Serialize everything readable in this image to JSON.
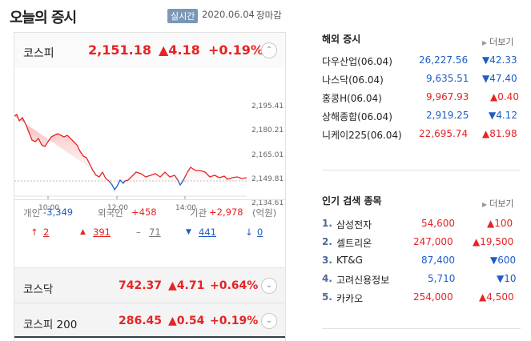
{
  "header": {
    "title": "오늘의 증시",
    "realtime": "실시간",
    "date": "2020.06.04",
    "status": "장마감"
  },
  "kospi": {
    "name": "코스피",
    "value": "2,151.18",
    "change": "▲4.18",
    "percent": "+0.19%",
    "toggle_icon": "chevron-up",
    "chart": {
      "y_ticks": [
        "2,195.41",
        "2,180.21",
        "2,165.01",
        "2,149.81",
        "2,134.61"
      ],
      "x_ticks": [
        "10:00",
        "12:00",
        "14:00"
      ],
      "colors": {
        "up": "#e52424",
        "down": "#1f5cc7"
      }
    }
  },
  "investors": {
    "individual_label": "개인",
    "individual_value": "-3,349",
    "foreign_label": "외국인",
    "foreign_value": "+458",
    "institution_label": "기관",
    "institution_value": "+2,978",
    "unit": "(억원)"
  },
  "breadth": {
    "upper_limit": "2",
    "rising": "391",
    "unchanged": "71",
    "falling": "441",
    "lower_limit": "0"
  },
  "kosdaq": {
    "name": "코스닥",
    "value": "742.37",
    "change": "▲4.71",
    "percent": "+0.64%"
  },
  "kospi200": {
    "name": "코스피 200",
    "value": "286.45",
    "change": "▲0.54",
    "percent": "+0.19%"
  },
  "overseas": {
    "title": "해외 증시",
    "more": "더보기",
    "items": [
      {
        "name": "다우산업(06.04)",
        "value": "26,227.56",
        "change": "▼42.33",
        "dir": "down"
      },
      {
        "name": "나스닥(06.04)",
        "value": "9,635.51",
        "change": "▼47.40",
        "dir": "down"
      },
      {
        "name": "홍콩H(06.04)",
        "value": "9,967.93",
        "change": "▲0.40",
        "dir": "up"
      },
      {
        "name": "상해종합(06.04)",
        "value": "2,919.25",
        "change": "▼4.12",
        "dir": "down"
      },
      {
        "name": "니케이225(06.04)",
        "value": "22,695.74",
        "change": "▲81.98",
        "dir": "up"
      }
    ]
  },
  "popular": {
    "title": "인기 검색 종목",
    "more": "더보기",
    "items": [
      {
        "rank": "1.",
        "name": "삼성전자",
        "price": "54,600",
        "change": "▲100",
        "dir": "up"
      },
      {
        "rank": "2.",
        "name": "셀트리온",
        "price": "247,000",
        "change": "▲19,500",
        "dir": "up"
      },
      {
        "rank": "3.",
        "name": "KT&G",
        "price": "87,400",
        "change": "▼600",
        "dir": "down"
      },
      {
        "rank": "4.",
        "name": "고려신용정보",
        "price": "5,710",
        "change": "▼10",
        "dir": "down"
      },
      {
        "rank": "5.",
        "name": "카카오",
        "price": "254,000",
        "change": "▲4,500",
        "dir": "up"
      }
    ]
  }
}
